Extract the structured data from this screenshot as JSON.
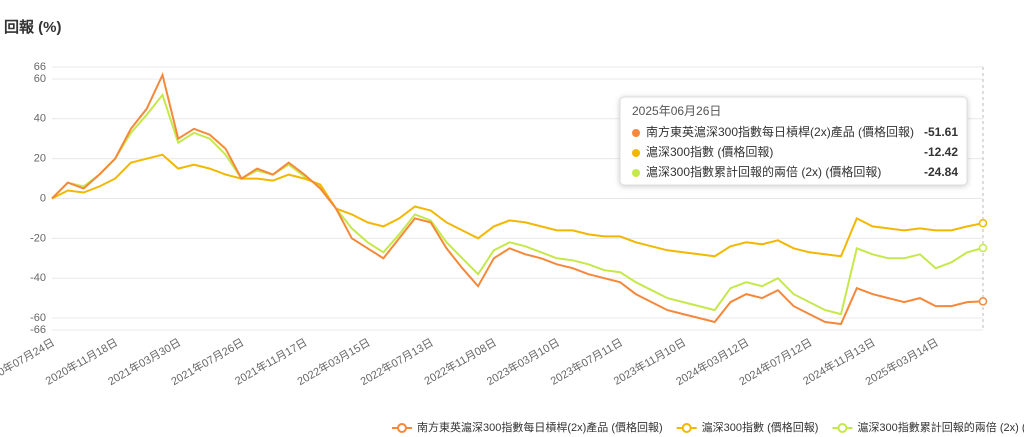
{
  "chart_data": {
    "type": "line",
    "title": "回報 (%)",
    "categories": [
      "2020年07月24日",
      null,
      null,
      null,
      "2020年11月18日",
      null,
      null,
      null,
      "2021年03月30日",
      null,
      null,
      null,
      "2021年07月26日",
      null,
      null,
      null,
      "2021年11月17日",
      null,
      null,
      null,
      "2022年03月15日",
      null,
      null,
      null,
      "2022年07月13日",
      null,
      null,
      null,
      "2022年11月08日",
      null,
      null,
      null,
      "2023年03月10日",
      null,
      null,
      null,
      "2023年07月11日",
      null,
      null,
      null,
      "2023年11月10日",
      null,
      null,
      null,
      "2024年03月12日",
      null,
      null,
      null,
      "2024年07月12日",
      null,
      null,
      null,
      "2024年11月13日",
      null,
      null,
      null,
      "2025年03月14日",
      null,
      null,
      null
    ],
    "series": [
      {
        "name": "南方東英滬深300指數每日槓桿(2x)產品 (價格回報)",
        "color": "#f5883a",
        "values": [
          0,
          8,
          5,
          12,
          20,
          35,
          45,
          62,
          30,
          35,
          32,
          25,
          10,
          15,
          12,
          18,
          12,
          5,
          -5,
          -20,
          -25,
          -30,
          -20,
          -10,
          -12,
          -25,
          -35,
          -44,
          -30,
          -25,
          -28,
          -30,
          -33,
          -35,
          -38,
          -40,
          -42,
          -48,
          -52,
          -56,
          -58,
          -60,
          -62,
          -52,
          -48,
          -50,
          -46,
          -54,
          -58,
          -62,
          -63,
          -45,
          -48,
          -50,
          -52,
          -50,
          -54,
          -54,
          -52,
          -51.61
        ]
      },
      {
        "name": "滬深300指數 (價格回報)",
        "color": "#f2b800",
        "values": [
          0,
          4,
          3,
          6,
          10,
          18,
          20,
          22,
          15,
          17,
          15,
          12,
          10,
          10,
          9,
          12,
          10,
          7,
          -5,
          -8,
          -12,
          -14,
          -10,
          -4,
          -6,
          -12,
          -16,
          -20,
          -14,
          -11,
          -12,
          -14,
          -16,
          -16,
          -18,
          -19,
          -19,
          -22,
          -24,
          -26,
          -27,
          -28,
          -29,
          -24,
          -22,
          -23,
          -21,
          -25,
          -27,
          -28,
          -29,
          -10,
          -14,
          -15,
          -16,
          -15,
          -16,
          -16,
          -14,
          -12.42
        ]
      },
      {
        "name": "滬深300指數累計回報的兩倍 (2x) (價格回報)",
        "color": "#c5e84a",
        "values": [
          0,
          8,
          6,
          12,
          20,
          33,
          42,
          52,
          28,
          33,
          30,
          22,
          10,
          14,
          12,
          17,
          11,
          6,
          -5,
          -15,
          -22,
          -27,
          -18,
          -8,
          -11,
          -22,
          -30,
          -38,
          -26,
          -22,
          -24,
          -27,
          -30,
          -31,
          -33,
          -36,
          -37,
          -42,
          -46,
          -50,
          -52,
          -54,
          -56,
          -45,
          -42,
          -44,
          -40,
          -48,
          -52,
          -56,
          -58,
          -25,
          -28,
          -30,
          -30,
          -28,
          -35,
          -32,
          -27,
          -24.84
        ]
      }
    ],
    "ylim": [
      -66,
      66
    ],
    "yticks": [
      -66,
      -60,
      -40,
      -20,
      0,
      20,
      40,
      60,
      66
    ],
    "grid": true,
    "tooltip": {
      "date": "2025年06月26日"
    }
  }
}
